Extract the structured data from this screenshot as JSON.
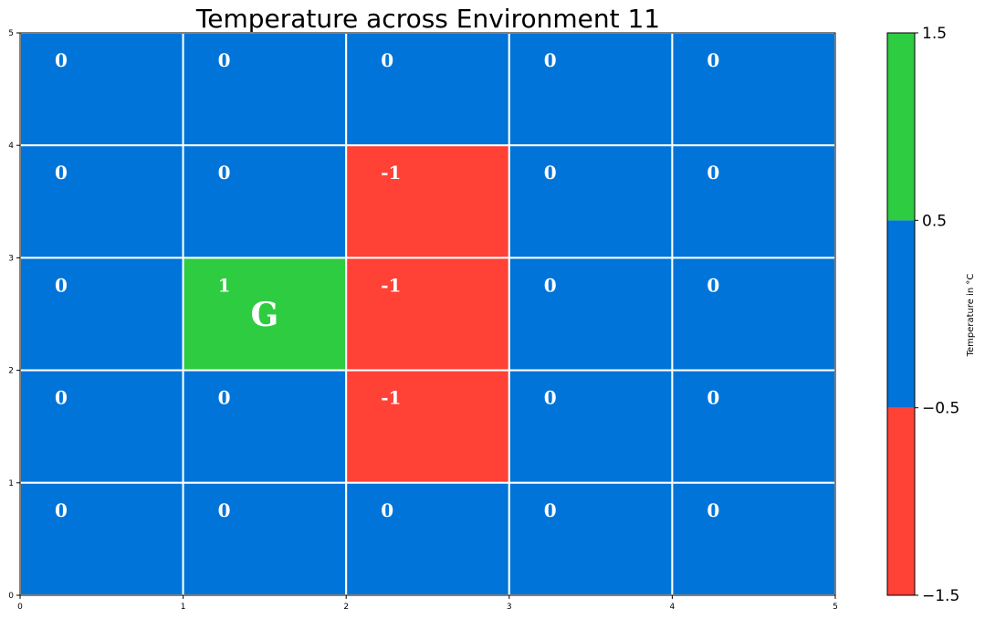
{
  "chart_data": {
    "type": "heatmap",
    "title": "Temperature across Environment 11",
    "xlim": [
      0,
      5
    ],
    "ylim": [
      0,
      5
    ],
    "x_ticks": [
      "0",
      "1",
      "2",
      "3",
      "4",
      "5"
    ],
    "y_ticks": [
      "0",
      "1",
      "2",
      "3",
      "4",
      "5"
    ],
    "grid": true,
    "rows_top_to_bottom": [
      [
        0,
        0,
        0,
        0,
        0
      ],
      [
        0,
        0,
        -1,
        0,
        0
      ],
      [
        0,
        1,
        -1,
        0,
        0
      ],
      [
        0,
        0,
        -1,
        0,
        0
      ],
      [
        0,
        0,
        0,
        0,
        0
      ]
    ],
    "markers": [
      {
        "label": "G",
        "row": 2,
        "col": 1
      }
    ],
    "colors": {
      "-1": "#ff4136",
      "0": "#0074d9",
      "1": "#2ecc40"
    },
    "colorbar": {
      "label": "Temperature in $^\\circ$C",
      "label_display": "Temperature in °C",
      "ticks": [
        "−1.5",
        "−0.5",
        "0.5",
        "1.5"
      ],
      "bounds": [
        -1.5,
        -0.5,
        0.5,
        1.5
      ],
      "segment_colors": [
        "#ff4136",
        "#0074d9",
        "#2ecc40"
      ],
      "position": "right"
    }
  }
}
